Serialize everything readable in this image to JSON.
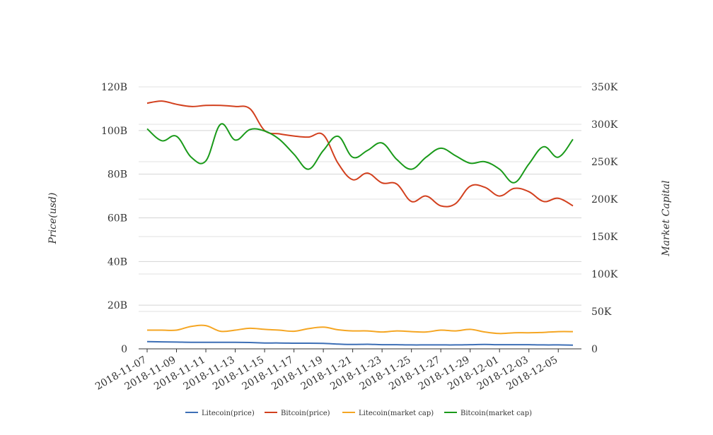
{
  "chart_data": {
    "type": "line",
    "x": [
      "2018-11-07",
      "2018-11-08",
      "2018-11-09",
      "2018-11-10",
      "2018-11-11",
      "2018-11-12",
      "2018-11-13",
      "2018-11-14",
      "2018-11-15",
      "2018-11-16",
      "2018-11-17",
      "2018-11-18",
      "2018-11-19",
      "2018-11-20",
      "2018-11-21",
      "2018-11-22",
      "2018-11-23",
      "2018-11-24",
      "2018-11-25",
      "2018-11-26",
      "2018-11-27",
      "2018-11-28",
      "2018-11-29",
      "2018-11-30",
      "2018-12-01",
      "2018-12-02",
      "2018-12-03",
      "2018-12-04",
      "2018-12-05",
      "2018-12-06"
    ],
    "x_tick_labels": [
      "2018-11-07",
      "2018-11-09",
      "2018-11-11",
      "2018-11-13",
      "2018-11-15",
      "2018-11-17",
      "2018-11-19",
      "2018-11-21",
      "2018-11-23",
      "2018-11-25",
      "2018-11-27",
      "2018-11-29",
      "2018-12-01",
      "2018-12-03",
      "2018-12-05"
    ],
    "left_axis": {
      "label": "Price(usd)",
      "ylim": [
        0,
        120000000000
      ],
      "ticks": [
        0,
        20000000000,
        40000000000,
        60000000000,
        80000000000,
        100000000000,
        120000000000
      ],
      "tick_labels": [
        "0",
        "20B",
        "40B",
        "60B",
        "80B",
        "100B",
        "120B"
      ]
    },
    "right_axis": {
      "label": "Market Capital",
      "ylim": [
        0,
        350000
      ],
      "ticks": [
        0,
        50000,
        100000,
        150000,
        200000,
        250000,
        300000,
        350000
      ],
      "tick_labels": [
        "0",
        "50K",
        "100K",
        "150K",
        "200K",
        "250K",
        "300K",
        "350K"
      ]
    },
    "grid": true,
    "legend_position": "bottom",
    "series": [
      {
        "name": "Litecoin(price)",
        "color": "#3d6fb6",
        "axis": "left",
        "values": [
          3300000000,
          3200000000,
          3100000000,
          3000000000,
          3000000000,
          3000000000,
          3000000000,
          2900000000,
          2700000000,
          2700000000,
          2600000000,
          2600000000,
          2500000000,
          2200000000,
          2000000000,
          2100000000,
          1900000000,
          1900000000,
          1800000000,
          1800000000,
          1800000000,
          1800000000,
          1900000000,
          2000000000,
          1900000000,
          1900000000,
          1900000000,
          1800000000,
          1800000000,
          1700000000
        ]
      },
      {
        "name": "Bitcoin(price)",
        "color": "#d2401e",
        "axis": "left",
        "values": [
          112500000000,
          113500000000,
          112000000000,
          111000000000,
          111500000000,
          111500000000,
          111000000000,
          110000000000,
          100000000000,
          98500000000,
          97500000000,
          97000000000,
          98000000000,
          85000000000,
          77500000000,
          80500000000,
          76000000000,
          75500000000,
          67500000000,
          70000000000,
          65500000000,
          66500000000,
          74500000000,
          74000000000,
          70000000000,
          73500000000,
          72000000000,
          67500000000,
          69000000000,
          65500000000
        ]
      },
      {
        "name": "Litecoin(market cap)",
        "color": "#f5a623",
        "axis": "right",
        "values": [
          25000,
          25000,
          25000,
          30000,
          31000,
          23500,
          25000,
          27500,
          26000,
          25000,
          23500,
          27000,
          29000,
          25500,
          24000,
          24000,
          22500,
          24000,
          23000,
          22500,
          25000,
          24000,
          26000,
          22500,
          20500,
          21500,
          21500,
          22000,
          23000,
          23000
        ]
      },
      {
        "name": "Bitcoin(market cap)",
        "color": "#1a9a1a",
        "axis": "right",
        "values": [
          294000,
          278000,
          284000,
          256000,
          251000,
          300000,
          279000,
          293000,
          291000,
          280000,
          260000,
          240000,
          265000,
          284000,
          256000,
          265000,
          275000,
          253000,
          240000,
          256000,
          268000,
          258000,
          248000,
          250000,
          240000,
          222000,
          247000,
          270000,
          256000,
          280000
        ]
      }
    ]
  }
}
